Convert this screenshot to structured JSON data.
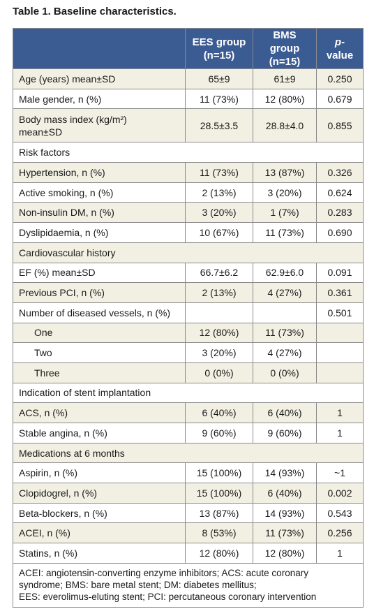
{
  "title": "Table 1. Baseline characteristics.",
  "table": {
    "header": {
      "ees": [
        "EES group",
        "(n=15)"
      ],
      "bms": [
        "BMS group",
        "(n=15)"
      ],
      "p": {
        "italic": "p",
        "rest": "-value"
      }
    },
    "rows": [
      {
        "cells": [
          "Age (years) mean±SD",
          "65±9",
          "61±9",
          "0.250"
        ]
      },
      {
        "cells": [
          "Male gender, n (%)",
          "11 (73%)",
          "12 (80%)",
          "0.679"
        ]
      },
      {
        "cells": [
          [
            "Body mass index (kg/m²)",
            "mean±SD"
          ],
          "28.5±3.5",
          "28.8±4.0",
          "0.855"
        ]
      },
      {
        "section": "Risk factors"
      },
      {
        "cells": [
          "Hypertension, n (%)",
          "11 (73%)",
          "13 (87%)",
          "0.326"
        ]
      },
      {
        "cells": [
          "Active smoking, n (%)",
          "2 (13%)",
          "3 (20%)",
          "0.624"
        ]
      },
      {
        "cells": [
          "Non-insulin DM, n (%)",
          "3 (20%)",
          "1 (7%)",
          "0.283"
        ]
      },
      {
        "cells": [
          "Dyslipidaemia, n (%)",
          "10 (67%)",
          "11 (73%)",
          "0.690"
        ]
      },
      {
        "section": "Cardiovascular history"
      },
      {
        "cells": [
          "EF (%) mean±SD",
          "66.7±6.2",
          "62.9±6.0",
          "0.091"
        ]
      },
      {
        "cells": [
          "Previous PCI, n (%)",
          "2 (13%)",
          "4 (27%)",
          "0.361"
        ]
      },
      {
        "cells": [
          "Number of diseased vessels, n (%)",
          null,
          null,
          "0.501"
        ]
      },
      {
        "cells": [
          "One",
          "12 (80%)",
          "11 (73%)",
          null
        ],
        "indent": true
      },
      {
        "cells": [
          "Two",
          "3 (20%)",
          "4 (27%)",
          null
        ],
        "indent": true
      },
      {
        "cells": [
          "Three",
          "0 (0%)",
          "0 (0%)",
          null
        ],
        "indent": true
      },
      {
        "section": "Indication of stent implantation"
      },
      {
        "cells": [
          "ACS, n (%)",
          "6 (40%)",
          "6 (40%)",
          "1"
        ]
      },
      {
        "cells": [
          "Stable angina, n (%)",
          "9 (60%)",
          "9 (60%)",
          "1"
        ]
      },
      {
        "section": "Medications at 6 months"
      },
      {
        "cells": [
          "Aspirin, n (%)",
          "15 (100%)",
          "14 (93%)",
          "~1"
        ]
      },
      {
        "cells": [
          "Clopidogrel, n (%)",
          "15 (100%)",
          "6 (40%)",
          "0.002"
        ]
      },
      {
        "cells": [
          "Beta-blockers, n (%)",
          "13 (87%)",
          "14 (93%)",
          "0.543"
        ]
      },
      {
        "cells": [
          "ACEI, n (%)",
          "8 (53%)",
          "11 (73%)",
          "0.256"
        ]
      },
      {
        "cells": [
          "Statins, n (%)",
          "12 (80%)",
          "12 (80%)",
          "1"
        ]
      }
    ],
    "footnote": [
      "ACEI: angiotensin-converting enzyme inhibitors; ACS: acute coronary",
      "syndrome; BMS: bare metal stent; DM: diabetes mellitus;",
      "EES: everolimus-eluting stent; PCI: percutaneous coronary intervention"
    ]
  }
}
